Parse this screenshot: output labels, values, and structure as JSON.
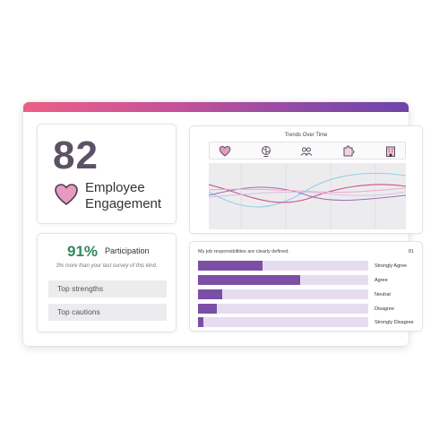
{
  "engagement": {
    "score": "82",
    "label_line1": "Employee",
    "label_line2": "Engagement",
    "heart_color": "#e79ac1"
  },
  "participation": {
    "percent": "91%",
    "label": "Participation",
    "note": "3% more than your last survey of this kind.",
    "rows": [
      "Top strengths",
      "Top cautions"
    ]
  },
  "trends": {
    "title": "Trends Over Time",
    "icons": [
      "heart-icon",
      "brain-icon",
      "people-icon",
      "puzzle-icon",
      "building-icon"
    ],
    "series_colors": [
      "#8fd0e6",
      "#d04f8e",
      "#a36bb4",
      "#f0a8c8",
      "#d8c0e6"
    ]
  },
  "survey": {
    "question": "My job responsibilities are clearly defined.",
    "number": "81",
    "bar_color": "#7b4fa6",
    "track_color": "#e6dcef",
    "responses": [
      {
        "label": "Strongly Agree",
        "value": 0.38
      },
      {
        "label": "Agree",
        "value": 0.6
      },
      {
        "label": "Neutral",
        "value": 0.14
      },
      {
        "label": "Disagree",
        "value": 0.11
      },
      {
        "label": "Strongly Disagree",
        "value": 0.03
      }
    ]
  }
}
